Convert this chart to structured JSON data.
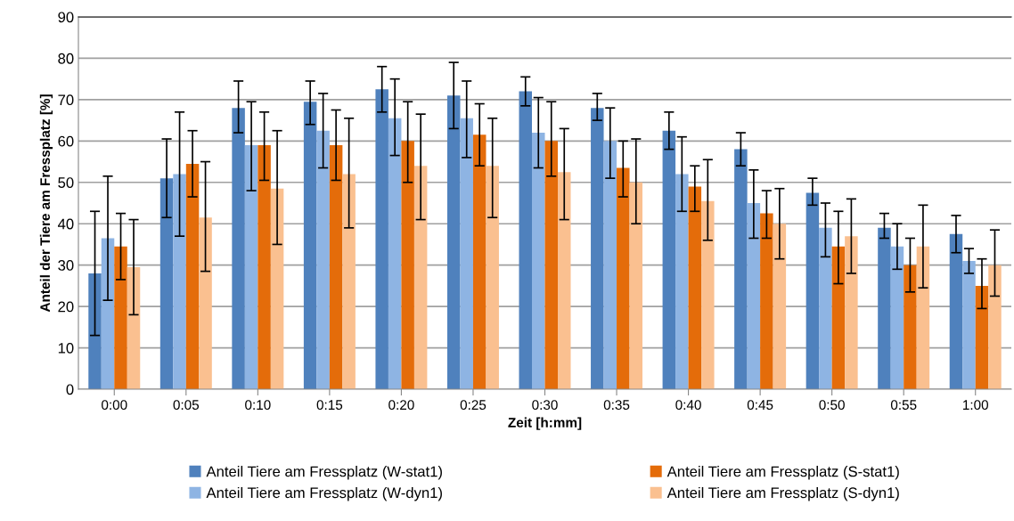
{
  "chart_data": {
    "type": "bar",
    "xlabel": "Zeit [h:mm]",
    "ylabel": "Anteil der Tiere am Fressplatz [%]",
    "categories": [
      "0:00",
      "0:05",
      "0:10",
      "0:15",
      "0:20",
      "0:25",
      "0:30",
      "0:35",
      "0:40",
      "0:45",
      "0:50",
      "0:55",
      "1:00"
    ],
    "series": [
      {
        "name": "Anteil Tiere am Fressplatz (W-stat1)",
        "color": "#4f81bd",
        "values": [
          28,
          51,
          68,
          69.5,
          72.5,
          71,
          72,
          68,
          62.5,
          58,
          47.5,
          39,
          37.5
        ],
        "errors": [
          [
            13,
            43
          ],
          [
            41.5,
            60.5
          ],
          [
            62,
            74.5
          ],
          [
            64,
            74.5
          ],
          [
            67,
            78
          ],
          [
            63,
            79
          ],
          [
            68.5,
            75.5
          ],
          [
            65,
            71.5
          ],
          [
            58,
            67
          ],
          [
            54,
            62
          ],
          [
            44.5,
            51
          ],
          [
            36.5,
            42.5
          ],
          [
            33,
            42
          ]
        ]
      },
      {
        "name": "Anteil Tiere am Fressplatz (W-dyn1)",
        "color": "#8eb4e3",
        "values": [
          36.5,
          52,
          59,
          62.5,
          65.5,
          65.5,
          62,
          60,
          52,
          45,
          39,
          34.5,
          31
        ],
        "errors": [
          [
            21.5,
            51.5
          ],
          [
            37,
            67
          ],
          [
            48,
            69.5
          ],
          [
            53.5,
            71.5
          ],
          [
            56.5,
            75
          ],
          [
            56,
            74.5
          ],
          [
            53.5,
            70.5
          ],
          [
            51,
            68
          ],
          [
            43,
            61
          ],
          [
            36.5,
            53
          ],
          [
            32,
            45
          ],
          [
            29,
            40
          ],
          [
            28,
            34
          ]
        ]
      },
      {
        "name": "Anteil Tiere am Fressplatz (S-stat1)",
        "color": "#e46c0a",
        "values": [
          34.5,
          54.5,
          59,
          59,
          60,
          61.5,
          60,
          53.5,
          49,
          42.5,
          34.5,
          30,
          25
        ],
        "errors": [
          [
            26.5,
            42.5
          ],
          [
            46.5,
            62.5
          ],
          [
            50.5,
            67
          ],
          [
            50.5,
            67.5
          ],
          [
            50,
            69.5
          ],
          [
            54,
            69
          ],
          [
            51.5,
            69.5
          ],
          [
            46.5,
            60
          ],
          [
            43,
            54
          ],
          [
            36.5,
            48
          ],
          [
            25.5,
            43
          ],
          [
            23.5,
            36.5
          ],
          [
            19.5,
            31.5
          ]
        ]
      },
      {
        "name": "Anteil Tiere am Fressplatz (S-dyn1)",
        "color": "#fac090",
        "values": [
          29.5,
          41.5,
          48.5,
          52,
          54,
          54,
          52.5,
          50,
          45.5,
          40,
          37,
          34.5,
          30
        ],
        "errors": [
          [
            18,
            41
          ],
          [
            28.5,
            55
          ],
          [
            35,
            62.5
          ],
          [
            39,
            65.5
          ],
          [
            41,
            66.5
          ],
          [
            41.5,
            65.5
          ],
          [
            41,
            63
          ],
          [
            40,
            60.5
          ],
          [
            36,
            55.5
          ],
          [
            31.5,
            48.5
          ],
          [
            28,
            46
          ],
          [
            24.5,
            44.5
          ],
          [
            22.5,
            38.5
          ]
        ]
      }
    ],
    "ylim": [
      0,
      90
    ],
    "yticks": [
      0,
      10,
      20,
      30,
      40,
      50,
      60,
      70,
      80,
      90
    ],
    "grid": "y",
    "legend": "bottom"
  }
}
